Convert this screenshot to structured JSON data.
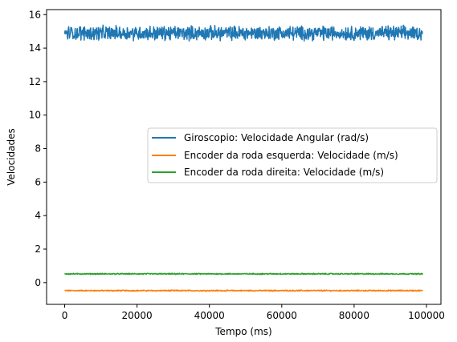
{
  "chart_data": {
    "type": "line",
    "title": "",
    "xlabel": "Tempo (ms)",
    "ylabel": "Velocidades",
    "xlim": [
      -5000,
      104000
    ],
    "ylim": [
      -1.3,
      16.3
    ],
    "xticks": [
      0,
      20000,
      40000,
      60000,
      80000,
      100000
    ],
    "yticks": [
      0,
      2,
      4,
      6,
      8,
      10,
      12,
      14,
      16
    ],
    "grid": false,
    "legend_position": "center-right",
    "sample_interval_ms": 100,
    "series": [
      {
        "name": "Giroscopio: Velocidade Angular (rad/s)",
        "color": "#1f77b4",
        "x_start": 0,
        "x_end": 99000,
        "mean": 14.9,
        "min": 14.2,
        "max": 15.5,
        "noise_amplitude": 0.35
      },
      {
        "name": "Encoder da roda esquerda: Velocidade (m/s)",
        "color": "#ff7f0e",
        "x_start": 0,
        "x_end": 99000,
        "mean": -0.48,
        "min": -0.55,
        "max": -0.42,
        "noise_amplitude": 0.03
      },
      {
        "name": "Encoder da roda direita: Velocidade (m/s)",
        "color": "#2ca02c",
        "x_start": 0,
        "x_end": 99000,
        "mean": 0.52,
        "min": 0.46,
        "max": 0.58,
        "noise_amplitude": 0.03
      }
    ]
  }
}
